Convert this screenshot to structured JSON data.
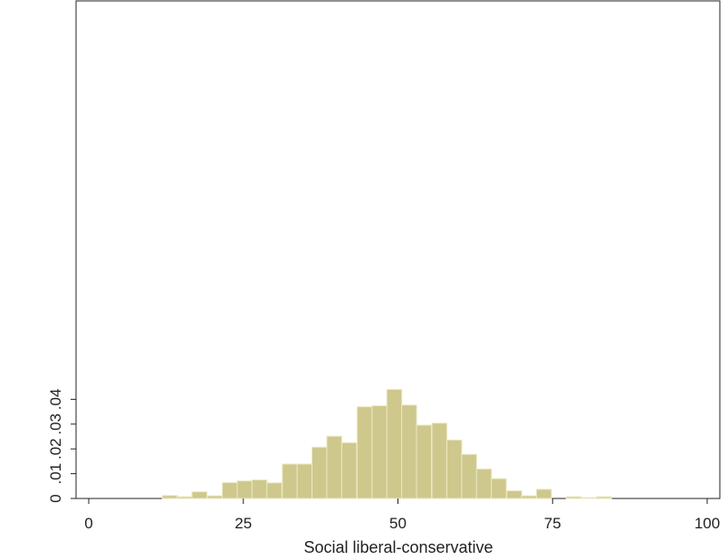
{
  "chart_data": {
    "type": "bar",
    "subtype": "histogram",
    "xlabel": "Social liberal-conservative",
    "ylabel": "",
    "xlim": [
      0,
      100
    ],
    "ylim": [
      0,
      0.045
    ],
    "x_ticks": [
      0,
      25,
      50,
      75,
      100
    ],
    "x_tick_labels": [
      "0",
      "25",
      "50",
      "75",
      "100"
    ],
    "y_ticks": [
      0,
      0.01,
      0.02,
      0.03,
      0.04
    ],
    "y_tick_labels": [
      "0",
      ".01",
      ".02",
      ".03",
      ".04"
    ],
    "grid": false,
    "bar_color": "#cfc88d",
    "bar_edge_color": "#ece9c4",
    "bin_width": 2.42,
    "bins": [
      {
        "x0": 11.9,
        "density": 0.0012
      },
      {
        "x0": 14.3,
        "density": 0.0007
      },
      {
        "x0": 16.7,
        "density": 0.0027
      },
      {
        "x0": 19.2,
        "density": 0.0011
      },
      {
        "x0": 21.6,
        "density": 0.0064
      },
      {
        "x0": 24.0,
        "density": 0.0071
      },
      {
        "x0": 26.4,
        "density": 0.0075
      },
      {
        "x0": 28.8,
        "density": 0.0063
      },
      {
        "x0": 31.3,
        "density": 0.0139
      },
      {
        "x0": 33.7,
        "density": 0.0139
      },
      {
        "x0": 36.1,
        "density": 0.0207
      },
      {
        "x0": 38.5,
        "density": 0.0251
      },
      {
        "x0": 40.9,
        "density": 0.0225
      },
      {
        "x0": 43.4,
        "density": 0.037
      },
      {
        "x0": 45.8,
        "density": 0.0374
      },
      {
        "x0": 48.2,
        "density": 0.044
      },
      {
        "x0": 50.6,
        "density": 0.0377
      },
      {
        "x0": 53.0,
        "density": 0.0296
      },
      {
        "x0": 55.5,
        "density": 0.0304
      },
      {
        "x0": 57.9,
        "density": 0.0236
      },
      {
        "x0": 60.3,
        "density": 0.0178
      },
      {
        "x0": 62.7,
        "density": 0.0119
      },
      {
        "x0": 65.1,
        "density": 0.008
      },
      {
        "x0": 67.6,
        "density": 0.0031
      },
      {
        "x0": 70.0,
        "density": 0.0011
      },
      {
        "x0": 72.4,
        "density": 0.0037
      },
      {
        "x0": 77.2,
        "density": 0.0007
      },
      {
        "x0": 79.7,
        "density": 0.0004
      },
      {
        "x0": 82.1,
        "density": 0.0007
      }
    ]
  }
}
